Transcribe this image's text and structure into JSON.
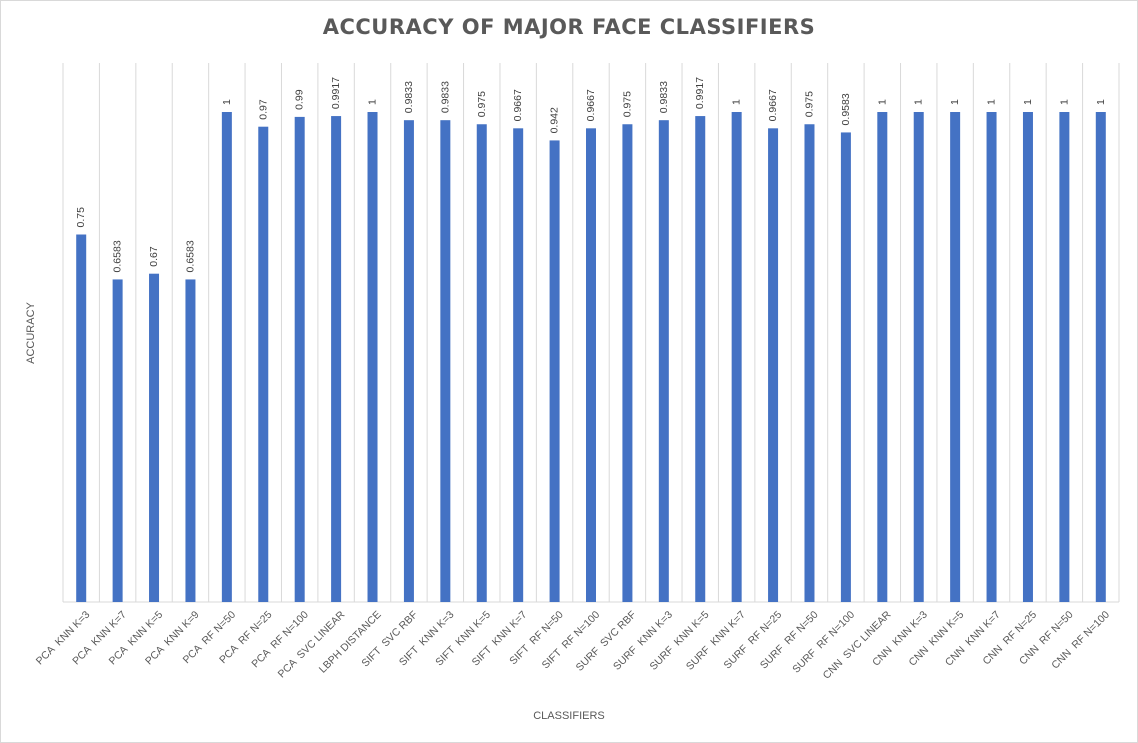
{
  "chart_data": {
    "type": "bar",
    "title": "ACCURACY OF MAJOR FACE CLASSIFIERS",
    "xlabel": "CLASSIFIERS",
    "ylabel": "ACCURACY",
    "ylim": [
      0,
      1.1
    ],
    "grid": "vertical",
    "bar_color": "#4472c4",
    "categories": [
      "PCA  KNN K=3",
      "PCA  KNN K=7",
      "PCA  KNN K=5",
      "PCA  KNN K=9",
      "PCA  RF N=50",
      "PCA  RF N=25",
      "PCA  RF N=100",
      "PCA  SVC LINEAR",
      "LBPH DISTANCE",
      "SIFT  SVC RBF",
      "SIFT  KNN K=3",
      "SIFT  KNN K=5",
      "SIFT  KNN K=7",
      "SIFT  RF N=50",
      "SIFT  RF N=100",
      "SURF  SVC RBF",
      "SURF  KNN K=3",
      "SURF  KNN K=5",
      "SURF  KNN K=7",
      "SURF  RF N=25",
      "SURF  RF N=50",
      "SURF  RF N=100",
      "CNN  SVC LINEAR",
      "CNN  KNN K=3",
      "CNN  KNN K=5",
      "CNN  KNN K=7",
      "CNN  RF N=25",
      "CNN  RF N=50",
      "CNN  RF N=100"
    ],
    "values": [
      0.75,
      0.6583,
      0.67,
      0.6583,
      1,
      0.97,
      0.99,
      0.9917,
      1,
      0.9833,
      0.9833,
      0.975,
      0.9667,
      0.942,
      0.9667,
      0.975,
      0.9833,
      0.9917,
      1,
      0.9667,
      0.975,
      0.9583,
      1,
      1,
      1,
      1,
      1,
      1,
      1
    ],
    "data_labels": [
      "0.75",
      "0.6583",
      "0.67",
      "0.6583",
      "1",
      "0.97",
      "0.99",
      "0.9917",
      "1",
      "0.9833",
      "0.9833",
      "0.975",
      "0.9667",
      "0.942",
      "0.9667",
      "0.975",
      "0.9833",
      "0.9917",
      "1",
      "0.9667",
      "0.975",
      "0.9583",
      "1",
      "1",
      "1",
      "1",
      "1",
      "1",
      "1"
    ]
  }
}
